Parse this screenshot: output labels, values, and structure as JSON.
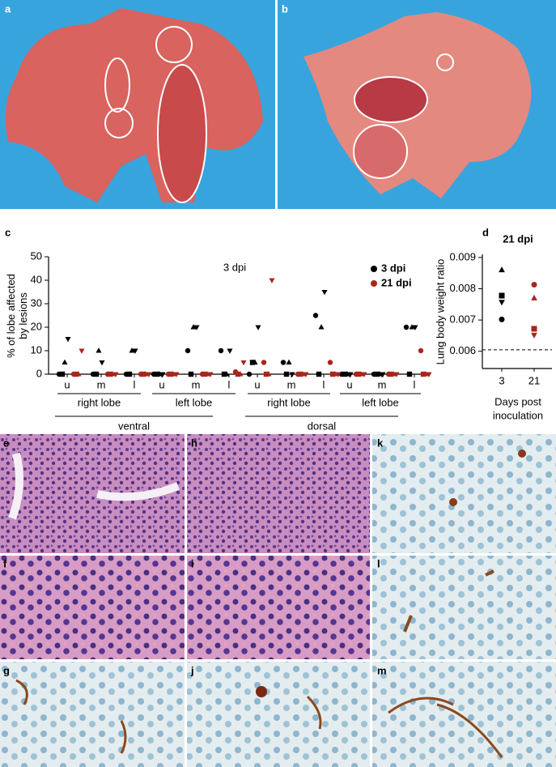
{
  "panel_labels": [
    "a",
    "b",
    "c",
    "d",
    "e",
    "h",
    "k",
    "f",
    "i",
    "l",
    "g",
    "j",
    "m"
  ],
  "chart_data": [
    {
      "type": "scatter",
      "title": "3 dpi",
      "ylabel": [
        "% of lobe affected",
        "by lesions"
      ],
      "categories": [
        "u",
        "m",
        "l",
        "u",
        "m",
        "l",
        "u",
        "m",
        "l",
        "u",
        "m",
        "l"
      ],
      "lobe_labels": [
        "right lobe",
        "left lobe",
        "right lobe",
        "left lobe"
      ],
      "side_labels": [
        "ventral",
        "dorsal"
      ],
      "ylim": [
        0,
        50
      ],
      "yticks": [
        0,
        10,
        20,
        30,
        40,
        50
      ],
      "legend": "upper right",
      "series": [
        {
          "name": "3 dpi",
          "color": "#000000",
          "animals": [
            {
              "marker": "circle",
              "values": [
                0,
                0,
                0,
                0,
                10,
                10,
                0,
                5,
                25,
                0,
                0,
                20
              ]
            },
            {
              "marker": "square",
              "values": [
                0,
                0,
                0,
                0,
                0,
                0,
                5,
                0,
                0,
                0,
                0,
                0
              ]
            },
            {
              "marker": "triangle-up",
              "values": [
                5,
                10,
                10,
                0,
                20,
                0,
                5,
                5,
                20,
                0,
                0,
                20
              ]
            },
            {
              "marker": "triangle-down",
              "values": [
                15,
                5,
                10,
                0,
                20,
                10,
                20,
                0,
                35,
                0,
                0,
                20
              ]
            }
          ]
        },
        {
          "name": "21 dpi",
          "color": "#a8261c",
          "animals": [
            {
              "marker": "circle",
              "values": [
                0,
                0,
                0,
                0,
                0,
                1,
                5,
                0,
                5,
                0,
                0,
                10
              ]
            },
            {
              "marker": "square",
              "values": [
                0,
                0,
                0,
                0,
                0,
                0,
                0,
                0,
                0,
                0,
                0,
                0
              ]
            },
            {
              "marker": "triangle-up",
              "values": [
                0,
                0,
                0,
                0,
                0,
                0,
                0,
                0,
                0,
                0,
                0,
                0
              ]
            },
            {
              "marker": "triangle-down",
              "values": [
                10,
                0,
                0,
                0,
                0,
                5,
                40,
                0,
                0,
                0,
                0,
                0
              ]
            }
          ]
        }
      ]
    },
    {
      "type": "scatter",
      "title": "21 dpi",
      "ylabel": "Lung body weight ratio",
      "xlabel": [
        "Days post",
        "inoculation"
      ],
      "categories": [
        "3",
        "21"
      ],
      "ylim": [
        0.00545,
        0.0091
      ],
      "yticks": [
        0.006,
        0.007,
        0.008,
        0.009
      ],
      "reference_line": 0.00605,
      "series": [
        {
          "color": "#000000",
          "markers": [
            "triangle-up",
            "square",
            "triangle-down",
            "circle"
          ],
          "values": [
            0.0086,
            0.00778,
            0.00757,
            0.00702
          ]
        },
        {
          "color": "#a8261c",
          "markers": [
            "circle",
            "triangle-up",
            "square",
            "triangle-down"
          ],
          "values": [
            0.00813,
            0.0077,
            0.00672,
            0.00652
          ]
        }
      ]
    }
  ]
}
